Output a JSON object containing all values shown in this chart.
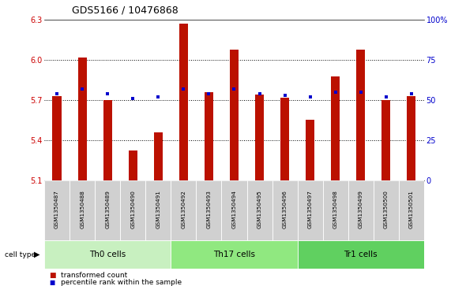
{
  "title": "GDS5166 / 10476868",
  "samples": [
    "GSM1350487",
    "GSM1350488",
    "GSM1350489",
    "GSM1350490",
    "GSM1350491",
    "GSM1350492",
    "GSM1350493",
    "GSM1350494",
    "GSM1350495",
    "GSM1350496",
    "GSM1350497",
    "GSM1350498",
    "GSM1350499",
    "GSM1350500",
    "GSM1350501"
  ],
  "red_values": [
    5.73,
    6.02,
    5.7,
    5.32,
    5.46,
    6.27,
    5.76,
    6.08,
    5.74,
    5.72,
    5.55,
    5.88,
    6.08,
    5.7,
    5.73
  ],
  "blue_pct": [
    54,
    57,
    54,
    51,
    52,
    57,
    54,
    57,
    54,
    53,
    52,
    55,
    55,
    52,
    54
  ],
  "base": 5.1,
  "ylim_left": [
    5.1,
    6.3
  ],
  "ylim_right": [
    0,
    100
  ],
  "yticks_left": [
    5.1,
    5.4,
    5.7,
    6.0,
    6.3
  ],
  "yticks_right": [
    0,
    25,
    50,
    75,
    100
  ],
  "ytick_labels_right": [
    "0",
    "25",
    "50",
    "75",
    "100%"
  ],
  "groups": [
    {
      "label": "Th0 cells",
      "start": 0,
      "end": 5,
      "color": "#c8f0c0"
    },
    {
      "label": "Th17 cells",
      "start": 5,
      "end": 10,
      "color": "#90e880"
    },
    {
      "label": "Tr1 cells",
      "start": 10,
      "end": 15,
      "color": "#60d060"
    }
  ],
  "bar_color": "#bb1100",
  "dot_color": "#0000cc",
  "grid_color": "#000000",
  "sample_bg_color": "#d0d0d0",
  "plot_bg": "#ffffff",
  "left_tick_color": "#cc0000",
  "right_tick_color": "#0000cc",
  "grid_yticks": [
    5.4,
    5.7,
    6.0
  ],
  "bar_width": 0.35
}
